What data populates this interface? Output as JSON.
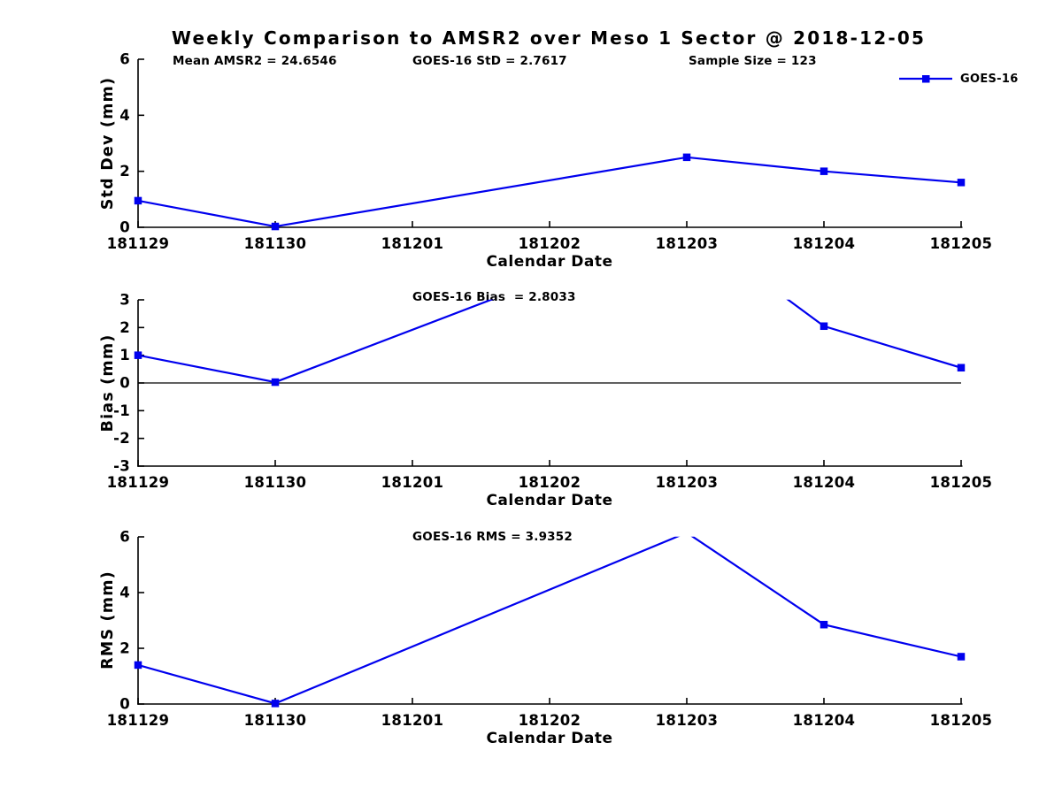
{
  "figure": {
    "title": "Weekly Comparison to AMSR2 over Meso 1 Sector @ 2018-12-05",
    "text_color": "#000000",
    "line_color": "#0000EE",
    "dates": [
      "181129",
      "181130",
      "181201",
      "181202",
      "181203",
      "181204",
      "181205"
    ],
    "legend": {
      "label": "GOES-16"
    }
  },
  "chart_data": [
    {
      "type": "line",
      "title": "",
      "annotations": [
        "Mean AMSR2 = 24.6546",
        "GOES-16 StD = 2.7617",
        "Sample Size = 123"
      ],
      "xlabel": "Calendar Date",
      "ylabel": "Std Dev (mm)",
      "ylim": [
        0,
        6
      ],
      "yticks": [
        0,
        2,
        4,
        6
      ],
      "categories": [
        "181129",
        "181130",
        "181201",
        "181202",
        "181203",
        "181204",
        "181205"
      ],
      "legend_position": "top-right",
      "grid": false,
      "zero_line": false,
      "series": [
        {
          "name": "GOES-16",
          "x": [
            "181129",
            "181130",
            "181203",
            "181204",
            "181205"
          ],
          "y": [
            0.95,
            0.03,
            2.5,
            2.0,
            1.6
          ]
        }
      ]
    },
    {
      "type": "line",
      "title": "",
      "annotations": [
        "GOES-16 Bias  = 2.8033"
      ],
      "xlabel": "Calendar Date",
      "ylabel": "Bias (mm)",
      "ylim": [
        -3,
        3
      ],
      "yticks": [
        3,
        2,
        1,
        0,
        -1,
        -2,
        -3
      ],
      "categories": [
        "181129",
        "181130",
        "181201",
        "181202",
        "181203",
        "181204",
        "181205"
      ],
      "grid": false,
      "zero_line": true,
      "series": [
        {
          "name": "GOES-16",
          "x": [
            "181129",
            "181130",
            "181203",
            "181204",
            "181205"
          ],
          "y": [
            1.0,
            0.03,
            5.7,
            2.05,
            0.55
          ]
        }
      ]
    },
    {
      "type": "line",
      "title": "",
      "annotations": [
        "GOES-16 RMS = 3.9352"
      ],
      "xlabel": "Calendar Date",
      "ylabel": "RMS (mm)",
      "ylim": [
        0,
        6
      ],
      "yticks": [
        0,
        2,
        4,
        6
      ],
      "categories": [
        "181129",
        "181130",
        "181201",
        "181202",
        "181203",
        "181204",
        "181205"
      ],
      "grid": false,
      "zero_line": false,
      "series": [
        {
          "name": "GOES-16",
          "x": [
            "181129",
            "181130",
            "181203",
            "181204",
            "181205"
          ],
          "y": [
            1.4,
            0.02,
            6.15,
            2.85,
            1.7
          ]
        }
      ]
    }
  ]
}
